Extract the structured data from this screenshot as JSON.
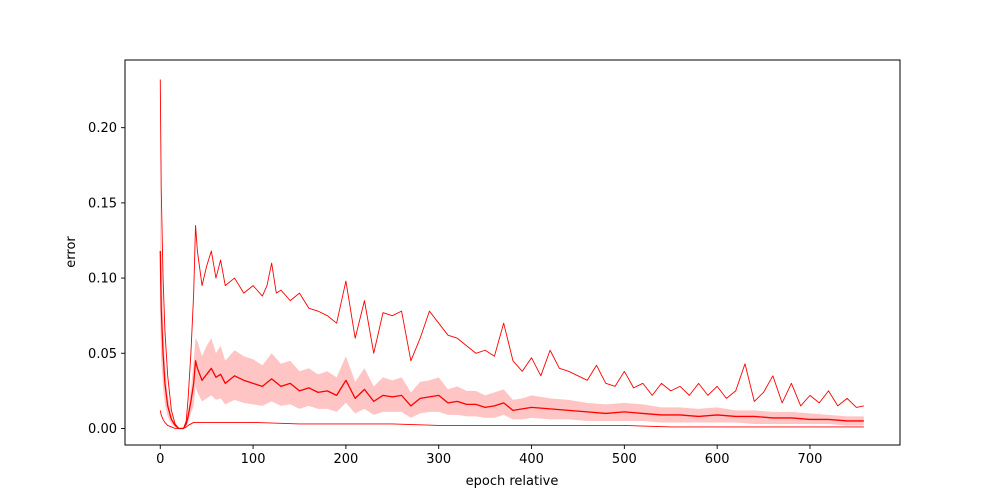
{
  "chart_data": {
    "type": "line",
    "title": "",
    "xlabel": "epoch relative",
    "ylabel": "error",
    "xlim": [
      -38,
      797
    ],
    "ylim": [
      -0.011,
      0.245
    ],
    "grid": false,
    "x_ticks": [
      0,
      100,
      200,
      300,
      400,
      500,
      600,
      700
    ],
    "x_tick_labels": [
      "0",
      "100",
      "200",
      "300",
      "400",
      "500",
      "600",
      "700"
    ],
    "y_ticks": [
      0.0,
      0.05,
      0.1,
      0.15,
      0.2
    ],
    "y_tick_labels": [
      "0.00",
      "0.05",
      "0.10",
      "0.15",
      "0.20"
    ],
    "colors": {
      "line": "#ff0000",
      "band": "#ffbbbb",
      "axes": "#000000"
    },
    "series": [
      {
        "role": "upper",
        "x": [
          0,
          1,
          3,
          5,
          8,
          12,
          16,
          20,
          25,
          28,
          30,
          33,
          36,
          38,
          40,
          45,
          50,
          55,
          60,
          65,
          70,
          80,
          90,
          100,
          110,
          115,
          120,
          125,
          130,
          140,
          150,
          160,
          170,
          180,
          190,
          200,
          210,
          220,
          230,
          240,
          250,
          260,
          270,
          280,
          290,
          300,
          310,
          320,
          330,
          340,
          350,
          360,
          370,
          380,
          390,
          400,
          410,
          420,
          430,
          440,
          450,
          460,
          470,
          480,
          490,
          500,
          510,
          520,
          530,
          540,
          550,
          560,
          570,
          580,
          590,
          600,
          610,
          620,
          630,
          640,
          650,
          660,
          670,
          680,
          690,
          700,
          710,
          720,
          730,
          740,
          750,
          758
        ],
        "y": [
          0.232,
          0.16,
          0.1,
          0.065,
          0.035,
          0.012,
          0.003,
          0.0,
          0.0,
          0.005,
          0.02,
          0.05,
          0.09,
          0.135,
          0.118,
          0.095,
          0.108,
          0.118,
          0.1,
          0.112,
          0.095,
          0.1,
          0.09,
          0.095,
          0.088,
          0.095,
          0.11,
          0.09,
          0.092,
          0.085,
          0.09,
          0.08,
          0.078,
          0.075,
          0.07,
          0.098,
          0.06,
          0.085,
          0.05,
          0.077,
          0.075,
          0.078,
          0.045,
          0.06,
          0.078,
          0.07,
          0.062,
          0.06,
          0.055,
          0.05,
          0.052,
          0.048,
          0.07,
          0.045,
          0.038,
          0.047,
          0.035,
          0.052,
          0.04,
          0.038,
          0.035,
          0.032,
          0.042,
          0.03,
          0.028,
          0.038,
          0.027,
          0.03,
          0.022,
          0.03,
          0.025,
          0.028,
          0.022,
          0.03,
          0.022,
          0.028,
          0.02,
          0.025,
          0.043,
          0.018,
          0.024,
          0.035,
          0.017,
          0.03,
          0.015,
          0.022,
          0.017,
          0.025,
          0.015,
          0.02,
          0.014,
          0.015
        ]
      },
      {
        "role": "mean",
        "x": [
          0,
          1,
          3,
          5,
          8,
          12,
          16,
          20,
          25,
          28,
          30,
          33,
          36,
          38,
          40,
          45,
          50,
          55,
          60,
          65,
          70,
          80,
          90,
          100,
          110,
          120,
          130,
          140,
          150,
          160,
          170,
          180,
          190,
          200,
          210,
          220,
          230,
          240,
          250,
          260,
          270,
          280,
          290,
          300,
          310,
          320,
          330,
          340,
          350,
          360,
          370,
          380,
          390,
          400,
          420,
          440,
          460,
          480,
          500,
          520,
          540,
          560,
          580,
          600,
          620,
          640,
          660,
          680,
          700,
          720,
          740,
          758
        ],
        "y": [
          0.118,
          0.08,
          0.05,
          0.03,
          0.015,
          0.006,
          0.002,
          0.0,
          0.0,
          0.003,
          0.008,
          0.018,
          0.03,
          0.045,
          0.04,
          0.032,
          0.036,
          0.04,
          0.034,
          0.036,
          0.03,
          0.035,
          0.032,
          0.03,
          0.028,
          0.033,
          0.028,
          0.03,
          0.025,
          0.027,
          0.024,
          0.025,
          0.022,
          0.032,
          0.02,
          0.026,
          0.018,
          0.022,
          0.021,
          0.022,
          0.015,
          0.02,
          0.021,
          0.022,
          0.017,
          0.018,
          0.016,
          0.016,
          0.014,
          0.015,
          0.017,
          0.012,
          0.013,
          0.014,
          0.013,
          0.012,
          0.011,
          0.01,
          0.011,
          0.01,
          0.009,
          0.009,
          0.008,
          0.009,
          0.008,
          0.008,
          0.007,
          0.007,
          0.006,
          0.006,
          0.005,
          0.005
        ]
      },
      {
        "role": "band_upper",
        "x": [
          0,
          1,
          3,
          5,
          8,
          12,
          16,
          20,
          25,
          28,
          30,
          33,
          36,
          38,
          40,
          45,
          50,
          55,
          60,
          65,
          70,
          80,
          90,
          100,
          110,
          120,
          130,
          140,
          150,
          160,
          170,
          180,
          190,
          200,
          210,
          220,
          230,
          240,
          250,
          260,
          270,
          280,
          290,
          300,
          310,
          320,
          330,
          340,
          350,
          360,
          370,
          380,
          390,
          400,
          420,
          440,
          460,
          480,
          500,
          520,
          540,
          560,
          580,
          600,
          620,
          640,
          660,
          680,
          700,
          720,
          740,
          758
        ],
        "y": [
          0.167,
          0.12,
          0.075,
          0.045,
          0.022,
          0.009,
          0.003,
          0.0,
          0.0,
          0.004,
          0.012,
          0.026,
          0.045,
          0.06,
          0.058,
          0.048,
          0.055,
          0.06,
          0.05,
          0.055,
          0.045,
          0.052,
          0.048,
          0.046,
          0.042,
          0.05,
          0.043,
          0.045,
          0.038,
          0.04,
          0.036,
          0.038,
          0.034,
          0.048,
          0.031,
          0.04,
          0.028,
          0.034,
          0.032,
          0.034,
          0.024,
          0.031,
          0.032,
          0.034,
          0.026,
          0.028,
          0.025,
          0.025,
          0.022,
          0.024,
          0.026,
          0.019,
          0.02,
          0.022,
          0.02,
          0.019,
          0.017,
          0.016,
          0.017,
          0.016,
          0.014,
          0.014,
          0.013,
          0.014,
          0.012,
          0.012,
          0.011,
          0.011,
          0.01,
          0.009,
          0.008,
          0.008
        ]
      },
      {
        "role": "band_lower",
        "x": [
          0,
          1,
          3,
          5,
          8,
          12,
          16,
          20,
          25,
          28,
          30,
          33,
          36,
          38,
          40,
          45,
          50,
          55,
          60,
          65,
          70,
          80,
          90,
          100,
          110,
          120,
          130,
          140,
          150,
          160,
          170,
          180,
          190,
          200,
          210,
          220,
          230,
          240,
          250,
          260,
          270,
          280,
          290,
          300,
          310,
          320,
          330,
          340,
          350,
          360,
          370,
          380,
          390,
          400,
          420,
          440,
          460,
          480,
          500,
          520,
          540,
          560,
          580,
          600,
          620,
          640,
          660,
          680,
          700,
          720,
          740,
          758
        ],
        "y": [
          0.07,
          0.045,
          0.028,
          0.016,
          0.008,
          0.003,
          0.001,
          0.0,
          0.0,
          0.002,
          0.004,
          0.01,
          0.015,
          0.028,
          0.024,
          0.018,
          0.02,
          0.022,
          0.019,
          0.02,
          0.016,
          0.019,
          0.017,
          0.016,
          0.015,
          0.018,
          0.015,
          0.016,
          0.013,
          0.015,
          0.013,
          0.013,
          0.011,
          0.017,
          0.01,
          0.013,
          0.009,
          0.011,
          0.011,
          0.011,
          0.007,
          0.01,
          0.011,
          0.011,
          0.009,
          0.009,
          0.008,
          0.008,
          0.007,
          0.007,
          0.009,
          0.006,
          0.006,
          0.007,
          0.006,
          0.006,
          0.005,
          0.005,
          0.005,
          0.005,
          0.004,
          0.004,
          0.004,
          0.004,
          0.004,
          0.003,
          0.003,
          0.003,
          0.003,
          0.003,
          0.002,
          0.002
        ]
      },
      {
        "role": "lower",
        "x": [
          0,
          1,
          3,
          5,
          8,
          12,
          16,
          20,
          25,
          28,
          30,
          33,
          36,
          40,
          50,
          100,
          150,
          200,
          250,
          300,
          350,
          400,
          450,
          500,
          550,
          600,
          650,
          700,
          758
        ],
        "y": [
          0.012,
          0.009,
          0.006,
          0.004,
          0.002,
          0.001,
          0.0,
          0.0,
          0.0,
          0.001,
          0.002,
          0.003,
          0.004,
          0.004,
          0.004,
          0.004,
          0.003,
          0.003,
          0.003,
          0.002,
          0.002,
          0.002,
          0.002,
          0.002,
          0.001,
          0.001,
          0.001,
          0.001,
          0.001
        ]
      }
    ]
  }
}
